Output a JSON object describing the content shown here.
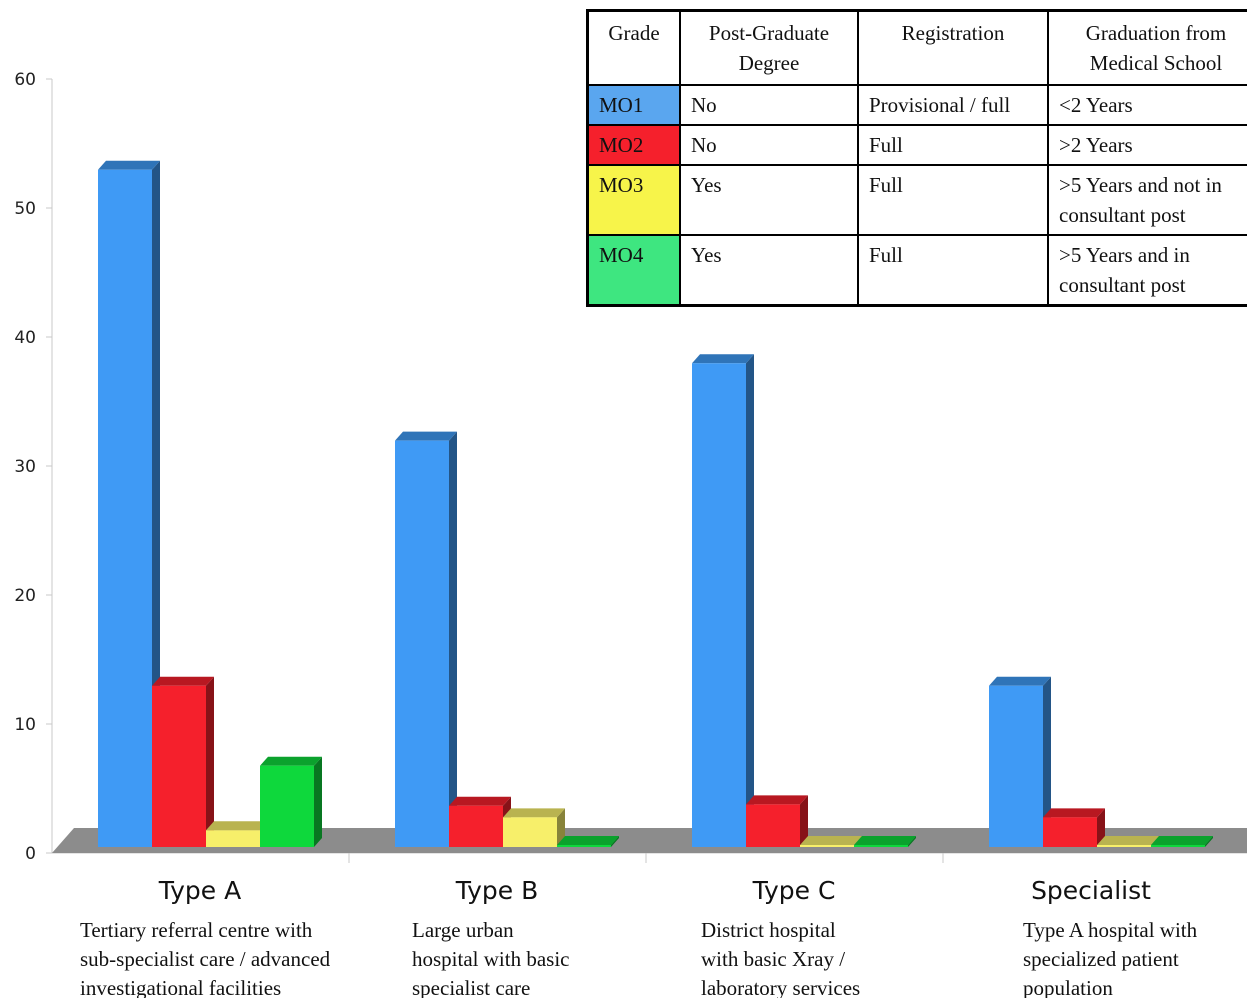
{
  "chart_data": {
    "type": "bar",
    "categories": [
      "Type A",
      "Type B",
      "Type C",
      "Specialist"
    ],
    "category_descriptions": [
      "Tertiary referral centre with\nsub-specialist care / advanced\ninvestigational facilities",
      "Large urban\nhospital with basic\nspecialist care",
      "District hospital\nwith basic Xray /\nlaboratory services",
      "Type A hospital with\nspecialized patient\npopulation"
    ],
    "series": [
      {
        "name": "MO1",
        "color": "#3f9af5",
        "values": [
          52.5,
          31.5,
          37.5,
          12.5
        ]
      },
      {
        "name": "MO2",
        "color": "#f5202c",
        "values": [
          12.5,
          3.2,
          3.3,
          2.3
        ]
      },
      {
        "name": "MO3",
        "color": "#f7ef6a",
        "values": [
          1.3,
          2.3,
          0,
          0
        ]
      },
      {
        "name": "MO4",
        "color": "#0ed83c",
        "values": [
          6.3,
          0,
          0,
          0
        ]
      }
    ],
    "ylim": [
      0,
      60
    ],
    "yticks": [
      "0",
      "10",
      "20",
      "30",
      "40",
      "50",
      "60"
    ],
    "grid": false,
    "legend": "top-right"
  },
  "legend_table": {
    "headers": [
      "Grade",
      "Post-Graduate\nDegree",
      "Registration",
      "Graduation from\nMedical School"
    ],
    "rows": [
      {
        "grade": "MO1",
        "color": "#5aa6ef",
        "degree": "No",
        "registration": "Provisional / full",
        "graduation": "<2 Years"
      },
      {
        "grade": "MO2",
        "color": "#f5202c",
        "degree": "No",
        "registration": "Full",
        "graduation": ">2 Years"
      },
      {
        "grade": "MO3",
        "color": "#f7f44a",
        "degree": "Yes",
        "registration": "Full",
        "graduation": ">5 Years and not in\nconsultant post"
      },
      {
        "grade": "MO4",
        "color": "#3ee680",
        "degree": "Yes",
        "registration": "Full",
        "graduation": ">5 Years and in\nconsultant post"
      }
    ]
  }
}
